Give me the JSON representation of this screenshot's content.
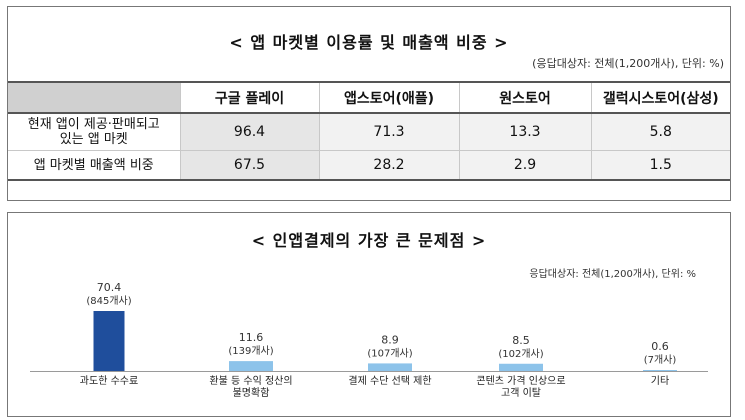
{
  "panel1": {
    "title": "< 앱 마켓별 이용률 및 매출액 비중 >",
    "note": "(응답대상자: 전체(1,200개사), 단위: %)",
    "columns": [
      "구글 플레이",
      "앱스토어(애플)",
      "원스토어",
      "갤럭시스토어(삼성)"
    ],
    "rows": [
      {
        "label_line1": "현재 앱이 제공·판매되고",
        "label_line2": "있는 앱 마켓",
        "values": [
          "96.4",
          "71.3",
          "13.3",
          "5.8"
        ]
      },
      {
        "label_line1": "앱 마켓별 매출액 비중",
        "label_line2": "",
        "values": [
          "67.5",
          "28.2",
          "2.9",
          "1.5"
        ]
      }
    ]
  },
  "panel2": {
    "title": "< 인앱결제의 가장 큰 문제점 >",
    "note": "응답대상자: 전체(1,200개사), 단위: %"
  },
  "chart_data": {
    "type": "bar",
    "title": "< 인앱결제의 가장 큰 문제점 >",
    "unit": "%",
    "categories": [
      [
        "과도한 수수료"
      ],
      [
        "환불 등 수익 정산의",
        "불명확함"
      ],
      [
        "결제 수단 선택 제한"
      ],
      [
        "콘텐츠 가격 인상으로",
        "고객 이탈"
      ],
      [
        "기타"
      ]
    ],
    "values": [
      70.4,
      11.6,
      8.9,
      8.5,
      0.6
    ],
    "value_labels": [
      "70.4",
      "11.6",
      "8.9",
      "8.5",
      "0.6"
    ],
    "count_labels": [
      "(845개사)",
      "(139개사)",
      "(107개사)",
      "(102개사)",
      "(7개사)"
    ],
    "colors": [
      "#1f4e9c",
      "#8dc3ea",
      "#8dc3ea",
      "#8dc3ea",
      "#8dc3ea"
    ],
    "ylim": [
      0,
      70.4
    ],
    "grid": false,
    "legend": "none"
  }
}
